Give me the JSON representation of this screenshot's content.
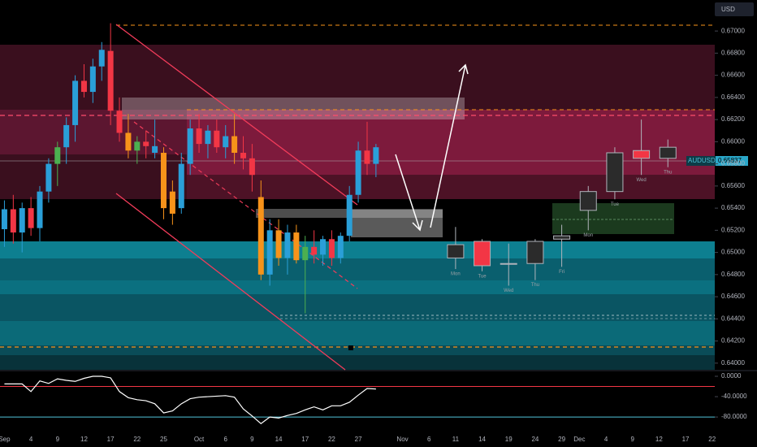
{
  "chart_data": [
    {
      "type": "candlestick",
      "currency": "USD",
      "symbol": "AUDUSD",
      "last": 0.65837,
      "x": [
        0,
        1,
        2,
        3,
        4,
        5,
        6,
        7,
        8,
        9,
        10,
        11,
        12,
        13,
        14,
        15,
        16,
        17,
        18,
        19,
        20,
        21,
        22,
        23,
        24,
        25,
        26,
        27,
        28,
        29,
        30,
        31,
        32,
        33,
        34,
        35,
        36,
        37,
        38,
        39,
        40,
        41,
        42
      ],
      "open": [
        0.6521,
        0.6539,
        0.6518,
        0.654,
        0.6522,
        0.6555,
        0.658,
        0.6595,
        0.6615,
        0.6655,
        0.6645,
        0.6668,
        0.6682,
        0.6628,
        0.6608,
        0.6592,
        0.66,
        0.6596,
        0.659,
        0.6555,
        0.654,
        0.658,
        0.6612,
        0.6598,
        0.661,
        0.6595,
        0.6605,
        0.659,
        0.6585,
        0.655,
        0.648,
        0.652,
        0.6495,
        0.6518,
        0.6493,
        0.6505,
        0.6498,
        0.6512,
        0.6495,
        0.6515,
        0.6552,
        0.6592,
        0.658
      ],
      "high": [
        0.6547,
        0.6552,
        0.6545,
        0.655,
        0.656,
        0.6585,
        0.66,
        0.6622,
        0.666,
        0.667,
        0.6675,
        0.669,
        0.6707,
        0.664,
        0.6625,
        0.6605,
        0.661,
        0.662,
        0.6595,
        0.6565,
        0.659,
        0.662,
        0.6625,
        0.6615,
        0.662,
        0.6615,
        0.6625,
        0.6605,
        0.6598,
        0.6565,
        0.653,
        0.653,
        0.6525,
        0.6525,
        0.6515,
        0.652,
        0.6515,
        0.652,
        0.6518,
        0.656,
        0.66,
        0.6618,
        0.6598
      ],
      "low": [
        0.6505,
        0.6508,
        0.65,
        0.6515,
        0.651,
        0.6545,
        0.656,
        0.658,
        0.66,
        0.664,
        0.6635,
        0.6655,
        0.6615,
        0.66,
        0.6585,
        0.658,
        0.6585,
        0.6585,
        0.653,
        0.6525,
        0.6535,
        0.657,
        0.659,
        0.6585,
        0.659,
        0.6585,
        0.658,
        0.6575,
        0.6555,
        0.6475,
        0.647,
        0.6488,
        0.648,
        0.649,
        0.6445,
        0.649,
        0.6488,
        0.6488,
        0.649,
        0.651,
        0.6545,
        0.657,
        0.6568
      ],
      "close": [
        0.6539,
        0.6518,
        0.654,
        0.6522,
        0.6555,
        0.658,
        0.6595,
        0.6615,
        0.6655,
        0.6645,
        0.6668,
        0.6683,
        0.6628,
        0.6608,
        0.6592,
        0.66,
        0.6596,
        0.659,
        0.654,
        0.6535,
        0.658,
        0.6612,
        0.6598,
        0.661,
        0.6595,
        0.6605,
        0.659,
        0.6585,
        0.657,
        0.648,
        0.652,
        0.6495,
        0.6518,
        0.6493,
        0.6505,
        0.6498,
        0.6512,
        0.6495,
        0.6515,
        0.6552,
        0.6592,
        0.658,
        0.6595
      ],
      "colors": [
        "#2a9fd8",
        "#f23645",
        "#2a9fd8",
        "#f23645",
        "#2a9fd8",
        "#2a9fd8",
        "#4caf50",
        "#2a9fd8",
        "#2a9fd8",
        "#f23645",
        "#2a9fd8",
        "#2a9fd8",
        "#f23645",
        "#f23645",
        "#f7931a",
        "#4caf50",
        "#f23645",
        "#2a9fd8",
        "#f7931a",
        "#f7931a",
        "#2a9fd8",
        "#2a9fd8",
        "#f23645",
        "#2a9fd8",
        "#f23645",
        "#2a9fd8",
        "#f7931a",
        "#f23645",
        "#f23645",
        "#f7931a",
        "#2a9fd8",
        "#f7931a",
        "#2a9fd8",
        "#f7931a",
        "#4caf50",
        "#f23645",
        "#2a9fd8",
        "#f23645",
        "#2a9fd8",
        "#2a9fd8",
        "#2a9fd8",
        "#f23645",
        "#2a9fd8"
      ],
      "projection": {
        "x": [
          51,
          54,
          57,
          60,
          63,
          66,
          69,
          72,
          75
        ],
        "labels": [
          "Mon",
          "Tue",
          "Wed",
          "Thu",
          "Fri",
          "Mon",
          "Tue",
          "Wed",
          "Thu"
        ],
        "open": [
          0.6507,
          0.651,
          0.649,
          0.649,
          0.6512,
          0.6538,
          0.6555,
          0.6592,
          0.6585
        ],
        "high": [
          0.6523,
          0.6512,
          0.6508,
          0.6512,
          0.6525,
          0.656,
          0.6595,
          0.662,
          0.6602
        ],
        "low": [
          0.6485,
          0.6483,
          0.647,
          0.6475,
          0.6487,
          0.652,
          0.6548,
          0.657,
          0.6577
        ],
        "close": [
          0.6495,
          0.6488,
          0.649,
          0.651,
          0.6515,
          0.6555,
          0.659,
          0.6585,
          0.6595
        ],
        "fills": [
          "#2b2b2b",
          "#f23645",
          "#2b2b2b",
          "#2b2b2b",
          "#2b2b2b",
          "#2b2b2b",
          "#2b2b2b",
          "#f23645",
          "#2b2b2b"
        ]
      },
      "xlim": [
        -0.5,
        80.3
      ],
      "xticks": [
        {
          "value": 0,
          "label": "Sep"
        },
        {
          "value": 3,
          "label": "4"
        },
        {
          "value": 6,
          "label": "9"
        },
        {
          "value": 9,
          "label": "12"
        },
        {
          "value": 12,
          "label": "17"
        },
        {
          "value": 15,
          "label": "22"
        },
        {
          "value": 18,
          "label": "25"
        },
        {
          "value": 22,
          "label": "Oct"
        },
        {
          "value": 25,
          "label": "6"
        },
        {
          "value": 28,
          "label": "9"
        },
        {
          "value": 31,
          "label": "14"
        },
        {
          "value": 34,
          "label": "17"
        },
        {
          "value": 37,
          "label": "22"
        },
        {
          "value": 40,
          "label": "27"
        },
        {
          "value": 45,
          "label": "Nov"
        },
        {
          "value": 48,
          "label": "6"
        },
        {
          "value": 51,
          "label": "11"
        },
        {
          "value": 54,
          "label": "14"
        },
        {
          "value": 57,
          "label": "19"
        },
        {
          "value": 60,
          "label": "24"
        },
        {
          "value": 63,
          "label": "29"
        },
        {
          "value": 65,
          "label": "Dec"
        },
        {
          "value": 68,
          "label": "4"
        },
        {
          "value": 71,
          "label": "9"
        },
        {
          "value": 74,
          "label": "12"
        },
        {
          "value": 77,
          "label": "17"
        },
        {
          "value": 80,
          "label": "22"
        }
      ],
      "ylim": [
        0.6394,
        0.6728
      ],
      "yticks": [
        {
          "value": 0.67,
          "label": "0.67000"
        },
        {
          "value": 0.668,
          "label": "0.66800"
        },
        {
          "value": 0.666,
          "label": "0.66600"
        },
        {
          "value": 0.664,
          "label": "0.66400"
        },
        {
          "value": 0.662,
          "label": "0.66200"
        },
        {
          "value": 0.66,
          "label": "0.66000"
        },
        {
          "value": 0.658,
          "label": "0.65800"
        },
        {
          "value": 0.656,
          "label": "0.65600"
        },
        {
          "value": 0.654,
          "label": "0.65400"
        },
        {
          "value": 0.652,
          "label": "0.65200"
        },
        {
          "value": 0.65,
          "label": "0.65000"
        },
        {
          "value": 0.648,
          "label": "0.64800"
        },
        {
          "value": 0.646,
          "label": "0.64600"
        },
        {
          "value": 0.644,
          "label": "0.64400"
        },
        {
          "value": 0.642,
          "label": "0.64200"
        },
        {
          "value": 0.64,
          "label": "0.64000"
        }
      ]
    },
    {
      "type": "line",
      "x": [
        0,
        1,
        2,
        3,
        4,
        5,
        6,
        7,
        8,
        9,
        10,
        11,
        12,
        13,
        14,
        15,
        16,
        17,
        18,
        19,
        20,
        21,
        22,
        23,
        24,
        25,
        26,
        27,
        28,
        29,
        30,
        31,
        32,
        33,
        34,
        35,
        36,
        37,
        38,
        39,
        40,
        41,
        42
      ],
      "values": [
        -15,
        -15,
        -15,
        -30,
        -9,
        -14,
        -5,
        -8,
        -10,
        -4,
        0,
        0,
        -3,
        -30,
        -42,
        -46,
        -48,
        -54,
        -72,
        -68,
        -54,
        -44,
        -41,
        -40,
        -39,
        -38,
        -41,
        -64,
        -78,
        -93,
        -80,
        -82,
        -77,
        -73,
        -66,
        -60,
        -66,
        -58,
        -58,
        -51,
        -37,
        -24,
        -25
      ],
      "color": "#ffffff",
      "levels": [
        {
          "value": -20,
          "color": "#f23645"
        },
        {
          "value": -80,
          "color": "#4fc3d9"
        }
      ],
      "ylim": [
        -107,
        8
      ],
      "yticks": [
        {
          "value": 0,
          "label": "0.0000"
        },
        {
          "value": -40,
          "label": "-40.0000"
        },
        {
          "value": -80,
          "label": "-80.0000"
        }
      ]
    }
  ]
}
